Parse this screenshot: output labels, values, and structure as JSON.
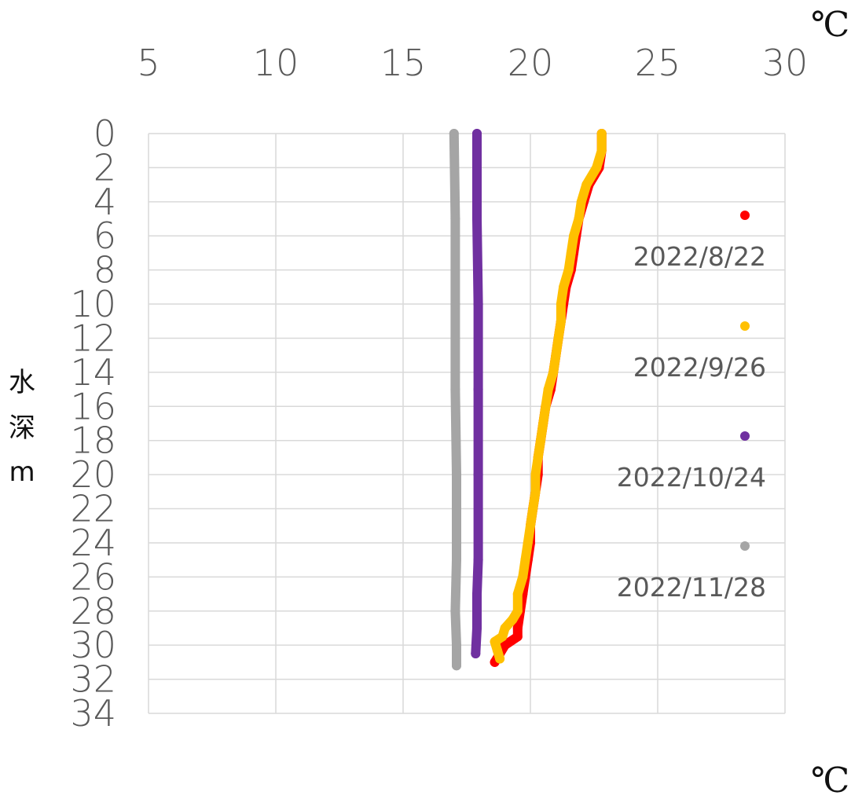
{
  "chart_data": {
    "type": "line",
    "x_unit_top": "℃",
    "x_unit_bottom": "℃",
    "ylabel_lines": [
      "水",
      "深",
      "m"
    ],
    "xlim": [
      5,
      30
    ],
    "ylim": [
      0,
      34
    ],
    "y_inverted": true,
    "x_axis_position": "top",
    "x_ticks": [
      "5",
      "10",
      "15",
      "20",
      "25",
      "30"
    ],
    "y_ticks": [
      "0",
      "2",
      "4",
      "6",
      "8",
      "10",
      "12",
      "14",
      "16",
      "18",
      "20",
      "22",
      "24",
      "26",
      "28",
      "30",
      "32",
      "34"
    ],
    "grid": true,
    "legend_position": "right",
    "series": [
      {
        "name": "2022/8/22",
        "color": "#ff0000",
        "points": [
          [
            22.8,
            0
          ],
          [
            22.8,
            1
          ],
          [
            22.7,
            2
          ],
          [
            22.3,
            3
          ],
          [
            22.1,
            4
          ],
          [
            21.9,
            5
          ],
          [
            21.8,
            6
          ],
          [
            21.7,
            7
          ],
          [
            21.6,
            8
          ],
          [
            21.4,
            9
          ],
          [
            21.3,
            10
          ],
          [
            21.2,
            11
          ],
          [
            21.1,
            12
          ],
          [
            21.0,
            13
          ],
          [
            20.9,
            14
          ],
          [
            20.8,
            15
          ],
          [
            20.6,
            16
          ],
          [
            20.5,
            17
          ],
          [
            20.4,
            18
          ],
          [
            20.3,
            19
          ],
          [
            20.3,
            20
          ],
          [
            20.2,
            21
          ],
          [
            20.1,
            22
          ],
          [
            20.0,
            23
          ],
          [
            20.0,
            24
          ],
          [
            19.9,
            25
          ],
          [
            19.8,
            26
          ],
          [
            19.7,
            27
          ],
          [
            19.6,
            28
          ],
          [
            19.5,
            29
          ],
          [
            19.5,
            29.5
          ],
          [
            19.0,
            30
          ],
          [
            18.8,
            30.5
          ],
          [
            18.6,
            31
          ]
        ]
      },
      {
        "name": "2022/9/26",
        "color": "#ffc000",
        "points": [
          [
            22.8,
            0
          ],
          [
            22.8,
            1
          ],
          [
            22.6,
            2
          ],
          [
            22.2,
            3
          ],
          [
            22.0,
            4
          ],
          [
            21.9,
            5
          ],
          [
            21.7,
            6
          ],
          [
            21.6,
            7
          ],
          [
            21.5,
            8
          ],
          [
            21.3,
            9
          ],
          [
            21.2,
            10
          ],
          [
            21.2,
            11
          ],
          [
            21.1,
            12
          ],
          [
            21.0,
            13
          ],
          [
            20.9,
            14
          ],
          [
            20.7,
            15
          ],
          [
            20.6,
            16
          ],
          [
            20.5,
            17
          ],
          [
            20.4,
            18
          ],
          [
            20.3,
            19
          ],
          [
            20.2,
            20
          ],
          [
            20.2,
            21
          ],
          [
            20.1,
            22
          ],
          [
            20.0,
            23
          ],
          [
            19.9,
            24
          ],
          [
            19.8,
            25
          ],
          [
            19.7,
            26
          ],
          [
            19.5,
            27
          ],
          [
            19.5,
            28
          ],
          [
            19.3,
            28.5
          ],
          [
            19.0,
            29
          ],
          [
            18.9,
            29.5
          ],
          [
            18.6,
            29.8
          ],
          [
            18.7,
            30.3
          ],
          [
            18.8,
            30.8
          ]
        ]
      },
      {
        "name": "2022/10/24",
        "color": "#7030a0",
        "points": [
          [
            17.9,
            0
          ],
          [
            17.9,
            5
          ],
          [
            17.95,
            10
          ],
          [
            17.95,
            15
          ],
          [
            17.95,
            20
          ],
          [
            17.95,
            25
          ],
          [
            17.9,
            27
          ],
          [
            17.9,
            29
          ],
          [
            17.85,
            30.5
          ]
        ]
      },
      {
        "name": "2022/11/28",
        "color": "#a5a5a5",
        "points": [
          [
            17.0,
            0
          ],
          [
            17.05,
            5
          ],
          [
            17.05,
            10
          ],
          [
            17.05,
            15
          ],
          [
            17.1,
            20
          ],
          [
            17.1,
            25
          ],
          [
            17.05,
            28
          ],
          [
            17.1,
            30
          ],
          [
            17.1,
            31.2
          ]
        ]
      }
    ]
  }
}
